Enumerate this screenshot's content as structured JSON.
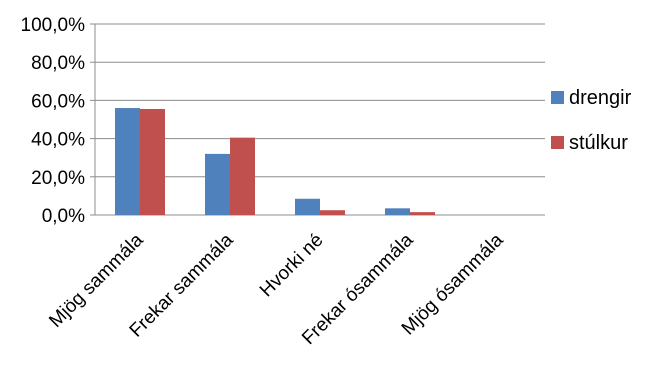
{
  "chart_data": {
    "type": "bar",
    "categories": [
      "Mjög sammála",
      "Frekar sammála",
      "Hvorki né",
      "Frekar ósammála",
      "Mjög ósammála"
    ],
    "series": [
      {
        "name": "drengir",
        "color": "#4F81BD",
        "values": [
          56.0,
          32.0,
          8.5,
          3.5,
          0.0
        ]
      },
      {
        "name": "stúlkur",
        "color": "#C0504D",
        "values": [
          55.5,
          40.5,
          2.5,
          1.5,
          0.0
        ]
      }
    ],
    "yticks": [
      "0,0%",
      "20,0%",
      "40,0%",
      "60,0%",
      "80,0%",
      "100,0%"
    ],
    "ylim": [
      0,
      100
    ],
    "grid": true,
    "legend_position": "right"
  }
}
